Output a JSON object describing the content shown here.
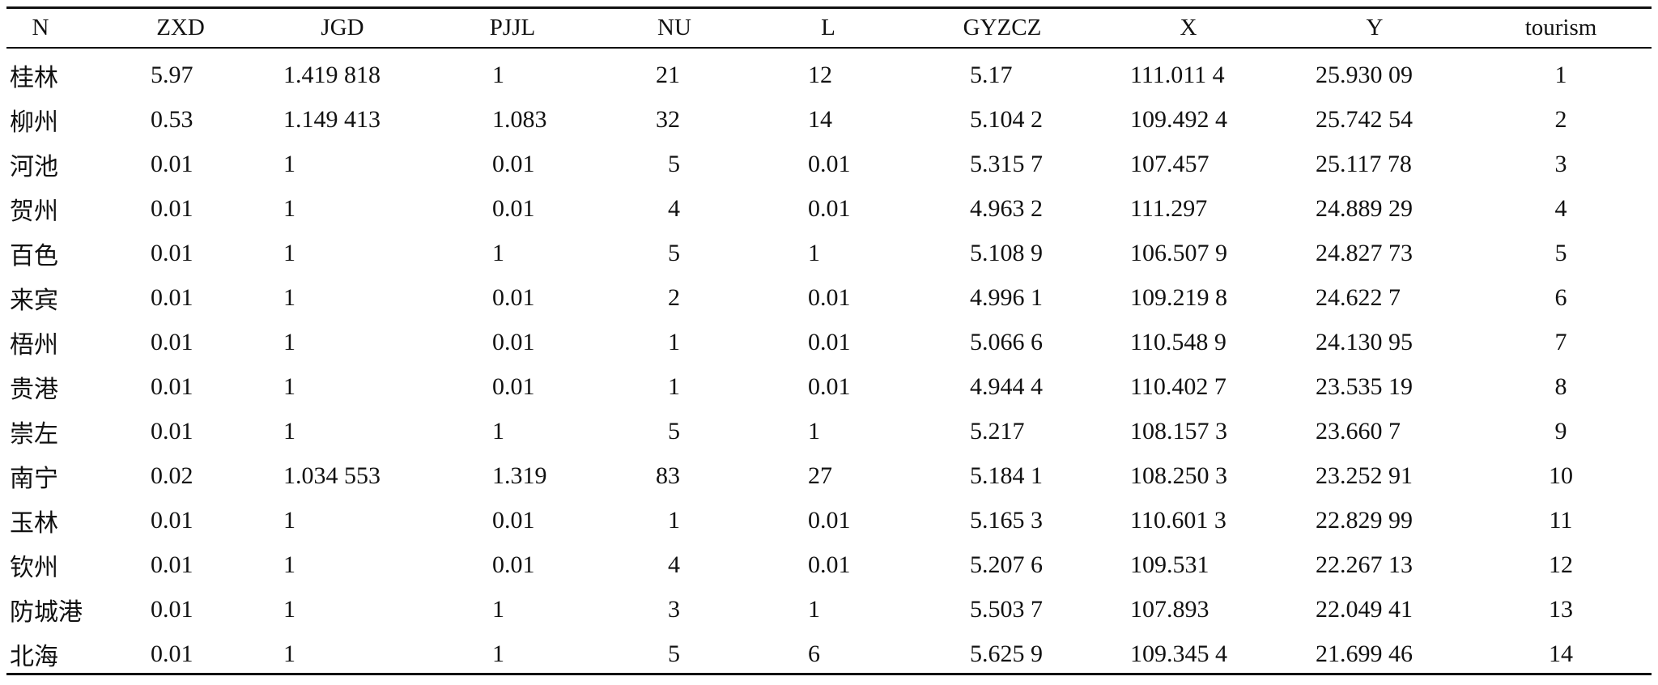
{
  "table": {
    "headers": [
      "N",
      "ZXD",
      "JGD",
      "PJJL",
      "NU",
      "L",
      "GYZCZ",
      "X",
      "Y",
      "tourism"
    ],
    "rows": [
      [
        "桂林",
        "5.97",
        "1.419 818",
        "1",
        "21",
        "12",
        "5.17",
        "111.011 4",
        "25.930 09",
        "1"
      ],
      [
        "柳州",
        "0.53",
        "1.149 413",
        "1.083",
        "32",
        "14",
        "5.104 2",
        "109.492 4",
        "25.742 54",
        "2"
      ],
      [
        "河池",
        "0.01",
        "1",
        "0.01",
        "5",
        "0.01",
        "5.315 7",
        "107.457",
        "25.117 78",
        "3"
      ],
      [
        "贺州",
        "0.01",
        "1",
        "0.01",
        "4",
        "0.01",
        "4.963 2",
        "111.297",
        "24.889 29",
        "4"
      ],
      [
        "百色",
        "0.01",
        "1",
        "1",
        "5",
        "1",
        "5.108 9",
        "106.507 9",
        "24.827 73",
        "5"
      ],
      [
        "来宾",
        "0.01",
        "1",
        "0.01",
        "2",
        "0.01",
        "4.996 1",
        "109.219 8",
        "24.622 7",
        "6"
      ],
      [
        "梧州",
        "0.01",
        "1",
        "0.01",
        "1",
        "0.01",
        "5.066 6",
        "110.548 9",
        "24.130 95",
        "7"
      ],
      [
        "贵港",
        "0.01",
        "1",
        "0.01",
        "1",
        "0.01",
        "4.944 4",
        "110.402 7",
        "23.535 19",
        "8"
      ],
      [
        "崇左",
        "0.01",
        "1",
        "1",
        "5",
        "1",
        "5.217",
        "108.157 3",
        "23.660 7",
        "9"
      ],
      [
        "南宁",
        "0.02",
        "1.034 553",
        "1.319",
        "83",
        "27",
        "5.184 1",
        "108.250 3",
        "23.252 91",
        "10"
      ],
      [
        "玉林",
        "0.01",
        "1",
        "0.01",
        "1",
        "0.01",
        "5.165 3",
        "110.601 3",
        "22.829 99",
        "11"
      ],
      [
        "钦州",
        "0.01",
        "1",
        "0.01",
        "4",
        "0.01",
        "5.207 6",
        "109.531",
        "22.267 13",
        "12"
      ],
      [
        "防城港",
        "0.01",
        "1",
        "1",
        "3",
        "1",
        "5.503 7",
        "107.893",
        "22.049 41",
        "13"
      ],
      [
        "北海",
        "0.01",
        "1",
        "1",
        "5",
        "6",
        "5.625 9",
        "109.345 4",
        "21.699 46",
        "14"
      ]
    ]
  }
}
